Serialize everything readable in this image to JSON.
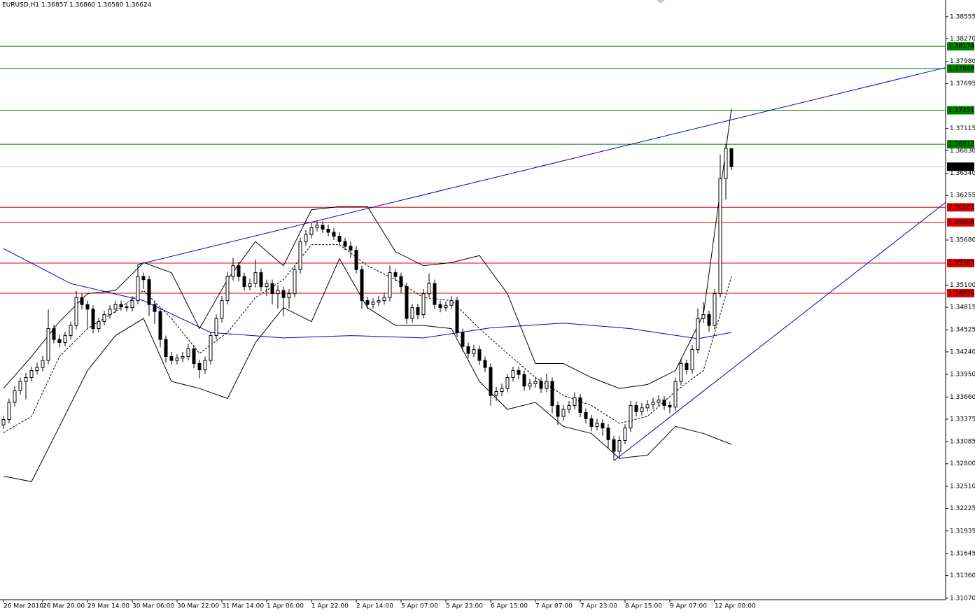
{
  "chart_data": {
    "type": "candlestick",
    "title": "EURUSD,H1  1.36857 1.36860 1.36580 1.36624",
    "categories": [
      "26 Mar 2010",
      null,
      null,
      null,
      null,
      null,
      null,
      "26 Mar 20:00",
      null,
      null,
      null,
      null,
      null,
      null,
      null,
      "29 Mar 14:00",
      null,
      null,
      null,
      null,
      null,
      null,
      null,
      "30 Mar 06:00",
      null,
      null,
      null,
      null,
      null,
      null,
      null,
      "30 Mar 22:00",
      null,
      null,
      null,
      null,
      null,
      null,
      null,
      "31 Mar 14:00",
      null,
      null,
      null,
      null,
      null,
      null,
      null,
      "1 Apr 06:00",
      null,
      null,
      null,
      null,
      null,
      null,
      null,
      "1 Apr 22:00",
      null,
      null,
      null,
      null,
      null,
      null,
      null,
      "2 Apr 14:00",
      null,
      null,
      null,
      null,
      null,
      null,
      null,
      "5 Apr 07:00",
      null,
      null,
      null,
      null,
      null,
      null,
      null,
      "5 Apr 23:00",
      null,
      null,
      null,
      null,
      null,
      null,
      null,
      "6 Apr 15:00",
      null,
      null,
      null,
      null,
      null,
      null,
      null,
      "7 Apr 07:00",
      null,
      null,
      null,
      null,
      null,
      null,
      null,
      "7 Apr 23:00",
      null,
      null,
      null,
      null,
      null,
      null,
      null,
      "8 Apr 15:00",
      null,
      null,
      null,
      null,
      null,
      null,
      null,
      "9 Apr 07:00",
      null,
      null,
      null,
      null,
      null,
      null,
      null,
      "12 Apr 00:00",
      null,
      null,
      null
    ],
    "open": [
      1.333,
      1.3337,
      1.3359,
      1.3374,
      1.3386,
      1.3391,
      1.34,
      1.3404,
      1.3413,
      1.3454,
      1.344,
      1.3436,
      1.3445,
      1.3458,
      1.3494,
      1.3485,
      1.3479,
      1.3454,
      1.3463,
      1.3472,
      1.3479,
      1.3485,
      1.3482,
      1.3481,
      1.349,
      1.3521,
      1.3517,
      1.3485,
      1.3476,
      1.344,
      1.3418,
      1.3413,
      1.3416,
      1.3418,
      1.3428,
      1.3409,
      1.3401,
      1.3413,
      1.3445,
      1.3467,
      1.349,
      1.3521,
      1.3535,
      1.3521,
      1.3508,
      1.3512,
      1.3526,
      1.3508,
      1.3512,
      1.3499,
      1.3503,
      1.3494,
      1.3499,
      1.353,
      1.3566,
      1.3575,
      1.3584,
      1.3587,
      1.3582,
      1.3578,
      1.3573,
      1.3566,
      1.356,
      1.3555,
      1.353,
      1.349,
      1.3485,
      1.3488,
      1.349,
      1.3494,
      1.3526,
      1.3521,
      1.3508,
      1.3467,
      1.3481,
      1.3472,
      1.3499,
      1.3512,
      1.3485,
      1.3481,
      1.3484,
      1.349,
      1.3449,
      1.3431,
      1.3422,
      1.3427,
      1.3413,
      1.3404,
      1.3368,
      1.3373,
      1.3377,
      1.3391,
      1.34,
      1.3395,
      1.338,
      1.3383,
      1.3386,
      1.3377,
      1.3386,
      1.3355,
      1.3341,
      1.335,
      1.3355,
      1.3365,
      1.3346,
      1.3338,
      1.3328,
      1.3332,
      1.3326,
      1.3311,
      1.3296,
      1.331,
      1.3326,
      1.3355,
      1.3347,
      1.3352,
      1.3356,
      1.3359,
      1.3362,
      1.3355,
      1.3353,
      1.3386,
      1.3409,
      1.3401,
      1.3427,
      1.3467,
      1.3472,
      1.3458,
      1.3499,
      1.3647,
      1.36857
    ],
    "high": [
      1.3342,
      1.3364,
      1.338,
      1.3391,
      1.3397,
      1.3405,
      1.341,
      1.3419,
      1.3479,
      1.3459,
      1.3446,
      1.345,
      1.3463,
      1.3503,
      1.3499,
      1.349,
      1.3484,
      1.3468,
      1.3477,
      1.3484,
      1.349,
      1.349,
      1.3487,
      1.3496,
      1.3537,
      1.3526,
      1.3522,
      1.349,
      1.3481,
      1.3445,
      1.3424,
      1.3421,
      1.3424,
      1.3434,
      1.3433,
      1.3414,
      1.3418,
      1.345,
      1.3472,
      1.3496,
      1.3527,
      1.3545,
      1.354,
      1.3526,
      1.3518,
      1.3543,
      1.3531,
      1.3517,
      1.3517,
      1.351,
      1.3508,
      1.3505,
      1.3535,
      1.3571,
      1.3581,
      1.359,
      1.3593,
      1.3592,
      1.3588,
      1.3583,
      1.3578,
      1.3571,
      1.3566,
      1.356,
      1.3535,
      1.3495,
      1.3493,
      1.3496,
      1.35,
      1.3535,
      1.3531,
      1.3526,
      1.3513,
      1.3486,
      1.3486,
      1.3505,
      1.3525,
      1.3517,
      1.349,
      1.3489,
      1.3496,
      1.3495,
      1.3454,
      1.3436,
      1.3433,
      1.3432,
      1.3418,
      1.3409,
      1.3379,
      1.3383,
      1.3396,
      1.3405,
      1.3405,
      1.34,
      1.3389,
      1.3392,
      1.3391,
      1.3396,
      1.3391,
      1.336,
      1.3356,
      1.3361,
      1.3372,
      1.337,
      1.3351,
      1.3343,
      1.3338,
      1.3337,
      1.3331,
      1.3316,
      1.3316,
      1.3331,
      1.3361,
      1.336,
      1.3358,
      1.3362,
      1.3365,
      1.3368,
      1.3367,
      1.336,
      1.3391,
      1.3415,
      1.3414,
      1.3433,
      1.348,
      1.3488,
      1.3477,
      1.3505,
      1.3678,
      1.3692,
      1.3686
    ],
    "low": [
      1.3325,
      1.3332,
      1.3354,
      1.3369,
      1.3363,
      1.3386,
      1.3395,
      1.3399,
      1.3408,
      1.3435,
      1.343,
      1.3431,
      1.344,
      1.3453,
      1.3479,
      1.3455,
      1.3448,
      1.3449,
      1.3458,
      1.3467,
      1.3474,
      1.3477,
      1.3476,
      1.3476,
      1.3485,
      1.3505,
      1.347,
      1.346,
      1.343,
      1.341,
      1.3407,
      1.3408,
      1.3411,
      1.3413,
      1.3403,
      1.339,
      1.3396,
      1.3408,
      1.344,
      1.3462,
      1.3485,
      1.3516,
      1.3515,
      1.3503,
      1.3503,
      1.3507,
      1.3502,
      1.3496,
      1.3485,
      1.348,
      1.347,
      1.348,
      1.3494,
      1.3525,
      1.3561,
      1.357,
      1.3579,
      1.3577,
      1.3573,
      1.3568,
      1.3561,
      1.3555,
      1.3545,
      1.3525,
      1.348,
      1.3479,
      1.348,
      1.3483,
      1.3485,
      1.3489,
      1.3515,
      1.35,
      1.346,
      1.3462,
      1.3466,
      1.3467,
      1.3494,
      1.3479,
      1.3475,
      1.3476,
      1.3479,
      1.3443,
      1.3425,
      1.3416,
      1.3417,
      1.3407,
      1.3398,
      1.3355,
      1.3361,
      1.3367,
      1.3372,
      1.3386,
      1.3389,
      1.3374,
      1.3375,
      1.3378,
      1.3371,
      1.3372,
      1.3345,
      1.333,
      1.3335,
      1.3345,
      1.335,
      1.334,
      1.3332,
      1.3322,
      1.3323,
      1.3316,
      1.33,
      1.3284,
      1.3286,
      1.3305,
      1.3321,
      1.3341,
      1.3342,
      1.3347,
      1.335,
      1.3354,
      1.3349,
      1.3345,
      1.3348,
      1.3381,
      1.3395,
      1.3396,
      1.3422,
      1.3461,
      1.345,
      1.3453,
      1.3494,
      1.362,
      1.3658
    ],
    "close": [
      1.3337,
      1.3359,
      1.3374,
      1.3386,
      1.3391,
      1.34,
      1.3404,
      1.3413,
      1.3454,
      1.344,
      1.3436,
      1.3445,
      1.3458,
      1.3494,
      1.3485,
      1.3479,
      1.3454,
      1.3463,
      1.3472,
      1.3479,
      1.3485,
      1.3482,
      1.3481,
      1.349,
      1.3521,
      1.3517,
      1.3485,
      1.3476,
      1.344,
      1.3418,
      1.3413,
      1.3416,
      1.3418,
      1.3428,
      1.3409,
      1.3401,
      1.3413,
      1.3445,
      1.3467,
      1.349,
      1.3521,
      1.3535,
      1.3521,
      1.3508,
      1.3512,
      1.3526,
      1.3508,
      1.3512,
      1.3499,
      1.3503,
      1.3494,
      1.3499,
      1.353,
      1.3566,
      1.3575,
      1.3584,
      1.3587,
      1.3582,
      1.3578,
      1.3573,
      1.3566,
      1.356,
      1.3555,
      1.353,
      1.349,
      1.3485,
      1.3488,
      1.349,
      1.3494,
      1.3526,
      1.3521,
      1.3508,
      1.3467,
      1.3481,
      1.3472,
      1.3499,
      1.3512,
      1.3485,
      1.3481,
      1.3484,
      1.349,
      1.3449,
      1.3431,
      1.3422,
      1.3427,
      1.3413,
      1.3404,
      1.3368,
      1.3373,
      1.3377,
      1.3391,
      1.34,
      1.3395,
      1.338,
      1.3383,
      1.3386,
      1.3377,
      1.3386,
      1.3355,
      1.3341,
      1.335,
      1.3355,
      1.3365,
      1.3346,
      1.3338,
      1.3328,
      1.3332,
      1.3326,
      1.3311,
      1.3296,
      1.331,
      1.3326,
      1.3355,
      1.3347,
      1.3352,
      1.3356,
      1.3359,
      1.3362,
      1.3355,
      1.3353,
      1.3386,
      1.3409,
      1.3401,
      1.3427,
      1.3467,
      1.3472,
      1.3458,
      1.3499,
      1.3647,
      1.3686,
      1.36624
    ],
    "bollinger": {
      "x": [
        0,
        5,
        10,
        15,
        20,
        25,
        30,
        35,
        40,
        45,
        50,
        55,
        60,
        65,
        70,
        75,
        80,
        85,
        90,
        95,
        100,
        105,
        110,
        115,
        120,
        125,
        130
      ],
      "color": "#000000",
      "upper": [
        1.3377,
        1.3418,
        1.3463,
        1.3499,
        1.3503,
        1.3539,
        1.3526,
        1.3454,
        1.3517,
        1.3566,
        1.3535,
        1.3607,
        1.3611,
        1.3611,
        1.3553,
        1.3535,
        1.3539,
        1.3548,
        1.3499,
        1.3409,
        1.3409,
        1.3391,
        1.3377,
        1.3382,
        1.34,
        1.3472,
        1.3737
      ],
      "middle": [
        1.332,
        1.3341,
        1.3418,
        1.3454,
        1.3476,
        1.3503,
        1.3467,
        1.3422,
        1.3449,
        1.3494,
        1.3517,
        1.3562,
        1.3562,
        1.3535,
        1.3517,
        1.3494,
        1.349,
        1.3454,
        1.3422,
        1.3391,
        1.3368,
        1.3355,
        1.3332,
        1.3341,
        1.3373,
        1.34,
        1.3521
      ],
      "lower": [
        1.3264,
        1.3257,
        1.3328,
        1.34,
        1.3445,
        1.3467,
        1.3386,
        1.3377,
        1.3364,
        1.3436,
        1.3481,
        1.3463,
        1.3544,
        1.3481,
        1.3458,
        1.3458,
        1.3454,
        1.3386,
        1.335,
        1.3359,
        1.3328,
        1.3319,
        1.3287,
        1.3291,
        1.3328,
        1.3319,
        1.3305
      ]
    },
    "moving_average": {
      "x": [
        0,
        12,
        25,
        37,
        50,
        62,
        75,
        87,
        100,
        112,
        124,
        130
      ],
      "values": [
        1.3557,
        1.3512,
        1.349,
        1.3449,
        1.3442,
        1.3445,
        1.3442,
        1.3455,
        1.3461,
        1.3454,
        1.3441,
        1.3449
      ],
      "color": "#0000cc"
    },
    "trendlines": [
      {
        "x": [
          24,
          130
        ],
        "y": [
          1.35365,
          1.37228
        ],
        "color": "#0000cc"
      },
      {
        "x": [
          109,
          130
        ],
        "y": [
          1.32838,
          1.34017
        ],
        "color": "#0000cc"
      }
    ],
    "levels": [
      {
        "value": 1.38174,
        "color": "#008000"
      },
      {
        "value": 1.37888,
        "color": "#008000"
      },
      {
        "value": 1.37351,
        "color": "#008000"
      },
      {
        "value": 1.36913,
        "color": "#008000"
      },
      {
        "value": 1.36101,
        "color": "#e00000"
      },
      {
        "value": 1.35908,
        "color": "#e00000"
      },
      {
        "value": 1.35383,
        "color": "#e00000"
      },
      {
        "value": 1.34996,
        "color": "#e00000"
      }
    ],
    "current_price": {
      "value": 1.36624,
      "line_color": "#c0c0c0",
      "label_color": "#000000"
    },
    "ylim": [
      1.3105,
      1.3877
    ],
    "yticks": [
      1.38555,
      {
        "value": 1.3827,
        "label": "1.38270"
      },
      {
        "value": 1.3798,
        "label": "1.37980"
      },
      1.37695,
      1.37115,
      {
        "value": 1.3683,
        "label": "1.36830"
      },
      {
        "value": 1.3654,
        "label": "1.36540"
      },
      1.36255,
      {
        "value": 1.3568,
        "label": "1.35680"
      },
      {
        "value": 1.351,
        "label": "1.35100"
      },
      1.34815,
      1.34525,
      {
        "value": 1.3424,
        "label": "1.34240"
      },
      {
        "value": 1.3395,
        "label": "1.33950"
      },
      {
        "value": 1.3366,
        "label": "1.33660"
      },
      1.33375,
      1.33085,
      {
        "value": 1.328,
        "label": "1.32800"
      },
      {
        "value": 1.3251,
        "label": "1.32510"
      },
      1.32225,
      1.31935,
      1.31645,
      {
        "value": 1.3136,
        "label": "1.31360"
      },
      {
        "value": 1.3107,
        "label": "1.31070"
      }
    ]
  }
}
